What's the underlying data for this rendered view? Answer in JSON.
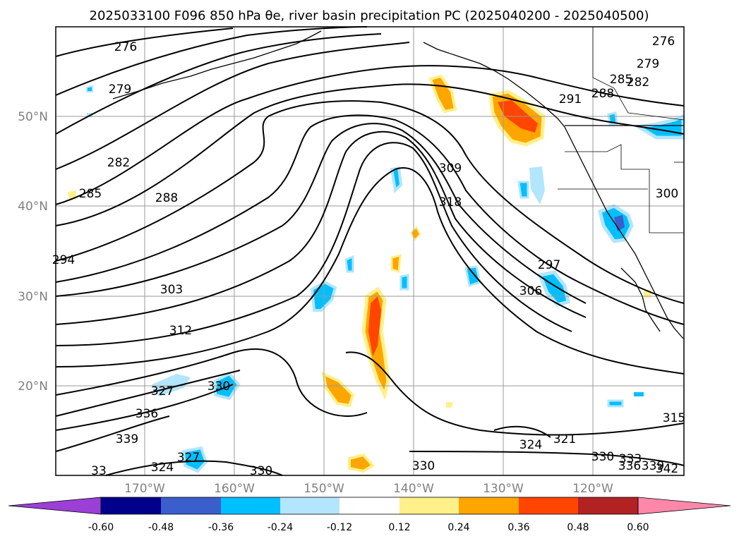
{
  "title": "2025033100 F096 850 hPa θe, river basin precipitation PC (2025040200 - 2025040500)",
  "lat_labels": [
    "50°N",
    "40°N",
    "30°N",
    "20°N"
  ],
  "lon_labels": [
    "170°W",
    "160°W",
    "150°W",
    "140°W",
    "130°W",
    "120°W"
  ],
  "colorbar": {
    "ticks": [
      "-0.60",
      "-0.48",
      "-0.36",
      "-0.24",
      "-0.12",
      "0.12",
      "0.24",
      "0.36",
      "0.48",
      "0.60"
    ],
    "colors": [
      "#9b3fd6",
      "#00008b",
      "#3a5fcd",
      "#00bfff",
      "#b3e5fc",
      "#ffffff",
      "#fff08a",
      "#ffa500",
      "#ff4500",
      "#b22222",
      "#ff88aa"
    ]
  },
  "contour_labels": [
    {
      "text": "276"
    },
    {
      "text": "279"
    },
    {
      "text": "282"
    },
    {
      "text": "285"
    },
    {
      "text": "288"
    },
    {
      "text": "294"
    },
    {
      "text": "303"
    },
    {
      "text": "312"
    },
    {
      "text": "327"
    },
    {
      "text": "330"
    },
    {
      "text": "336"
    },
    {
      "text": "339"
    },
    {
      "text": "327"
    },
    {
      "text": "324"
    },
    {
      "text": "330"
    },
    {
      "text": "309"
    },
    {
      "text": "318"
    },
    {
      "text": "297"
    },
    {
      "text": "306"
    },
    {
      "text": "291"
    },
    {
      "text": "288"
    },
    {
      "text": "285"
    },
    {
      "text": "282"
    },
    {
      "text": "279"
    },
    {
      "text": "276"
    },
    {
      "text": "300"
    },
    {
      "text": "330"
    },
    {
      "text": "324"
    },
    {
      "text": "321"
    },
    {
      "text": "330"
    },
    {
      "text": "333"
    },
    {
      "text": "336"
    },
    {
      "text": "339"
    },
    {
      "text": "342"
    },
    {
      "text": "315"
    },
    {
      "text": "33"
    }
  ]
}
